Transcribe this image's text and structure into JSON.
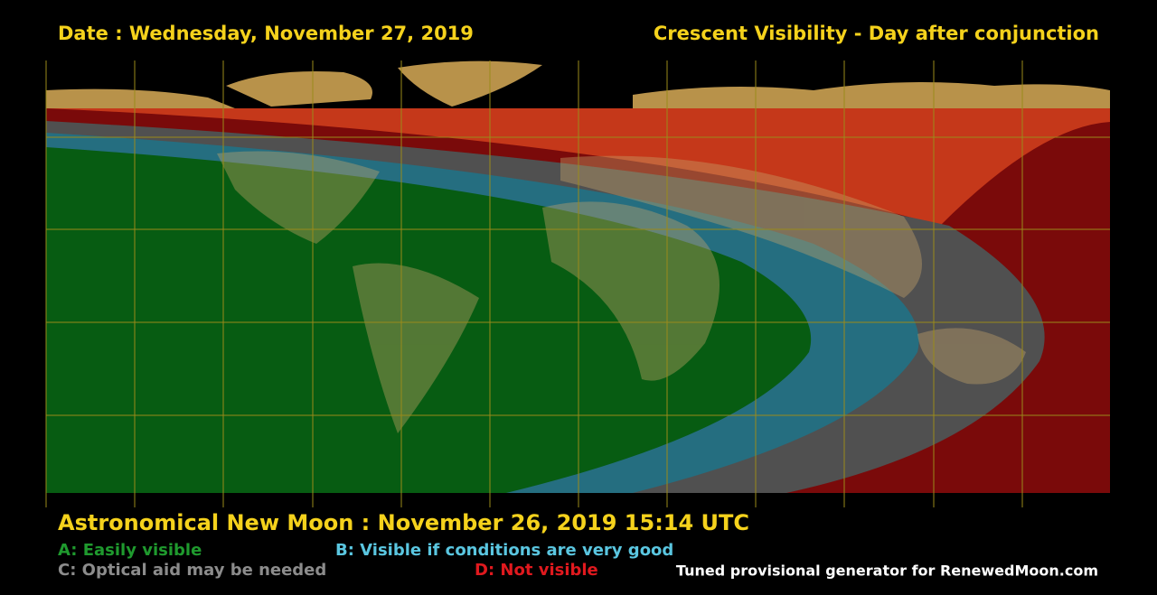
{
  "header": {
    "date": "Date : Wednesday, November 27, 2019",
    "title": "Crescent Visibility - Day after conjunction"
  },
  "footer": {
    "new_moon": "Astronomical New Moon : November 26, 2019 15:14 UTC",
    "legend": [
      "A: Easily visible",
      "B: Visible if conditions are very good",
      "C: Optical aid may be needed",
      "D: Not visible"
    ],
    "credit": "Tuned provisional generator for RenewedMoon.com"
  }
}
